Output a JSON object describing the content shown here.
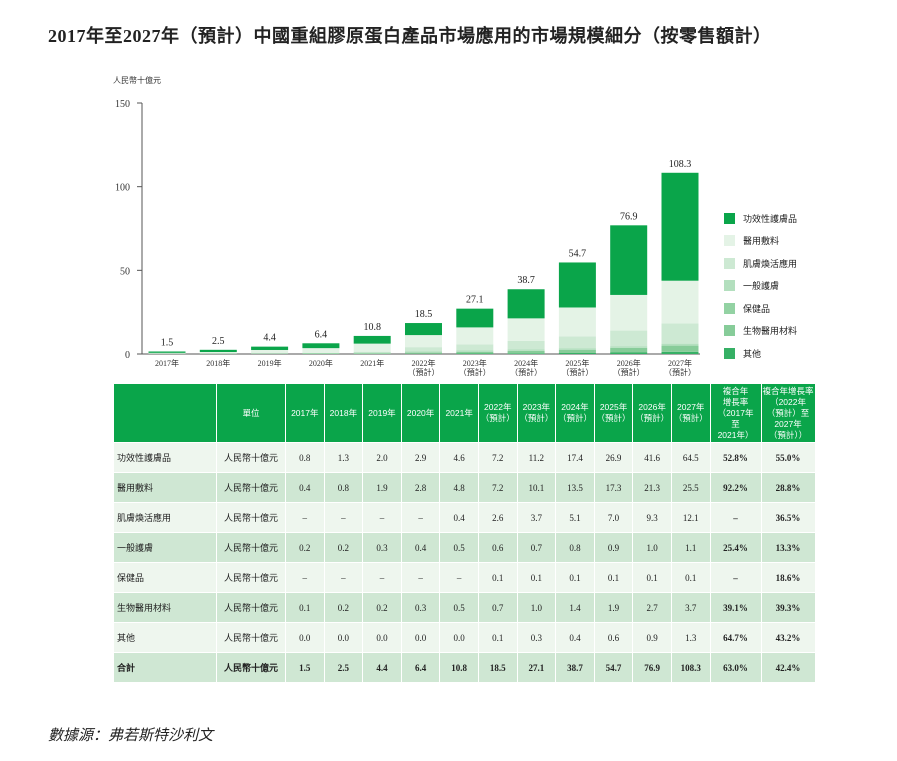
{
  "title": "2017年至2027年（預計）中國重組膠原蛋白產品市場應用的市場規模細分（按零售額計）",
  "source": "數據源：弗若斯特沙利文",
  "chart_data": {
    "type": "bar",
    "stacked": true,
    "ylabel": "人民幣十億元",
    "ylim": [
      0,
      150
    ],
    "yticks": [
      0,
      50,
      100,
      150
    ],
    "categories": [
      "2017年",
      "2018年",
      "2019年",
      "2020年",
      "2021年",
      "2022年\n（預計）",
      "2023年\n（預計）",
      "2024年\n（預計）",
      "2025年\n（預計）",
      "2026年\n（預計）",
      "2027年\n（預計）"
    ],
    "totals": [
      1.5,
      2.5,
      4.4,
      6.4,
      10.8,
      18.5,
      27.1,
      38.7,
      54.7,
      76.9,
      108.3
    ],
    "legend_position": "right",
    "series": [
      {
        "name": "功效性護膚品",
        "color": "#0aa54a",
        "values": [
          0.8,
          1.3,
          2.0,
          2.9,
          4.6,
          7.2,
          11.2,
          17.4,
          26.9,
          41.6,
          64.5
        ]
      },
      {
        "name": "醫用敷料",
        "color": "#e4f3e6",
        "values": [
          0.4,
          0.8,
          1.9,
          2.8,
          4.8,
          7.2,
          10.1,
          13.5,
          17.3,
          21.3,
          25.5
        ]
      },
      {
        "name": "肌膚煥活應用",
        "color": "#cde9d3",
        "values": [
          0,
          0,
          0,
          0,
          0.4,
          2.6,
          3.7,
          5.1,
          7.0,
          9.3,
          12.1
        ]
      },
      {
        "name": "一般護膚",
        "color": "#b3dfbe",
        "values": [
          0.2,
          0.2,
          0.3,
          0.4,
          0.5,
          0.6,
          0.7,
          0.8,
          0.9,
          1.0,
          1.1
        ]
      },
      {
        "name": "保健品",
        "color": "#93d2a3",
        "values": [
          0,
          0,
          0,
          0,
          0,
          0.1,
          0.1,
          0.1,
          0.1,
          0.1,
          0.1
        ]
      },
      {
        "name": "生物醫用材料",
        "color": "#87cc99",
        "values": [
          0.1,
          0.2,
          0.2,
          0.3,
          0.5,
          0.7,
          1.0,
          1.4,
          1.9,
          2.7,
          3.7
        ]
      },
      {
        "name": "其他",
        "color": "#36b065",
        "values": [
          0.0,
          0.0,
          0.0,
          0.0,
          0.0,
          0.1,
          0.3,
          0.4,
          0.6,
          0.9,
          1.3
        ]
      }
    ]
  },
  "table": {
    "headers": [
      "",
      "單位",
      "2017年",
      "2018年",
      "2019年",
      "2020年",
      "2021年",
      "2022年\n（預計）",
      "2023年\n（預計）",
      "2024年\n（預計）",
      "2025年\n（預計）",
      "2026年\n（預計）",
      "2027年\n（預計）",
      "複合年\n增長率\n（2017年\n至\n2021年）",
      "複合年增長率\n（2022年\n（預計）至\n2027年\n（預計））"
    ],
    "rows": [
      [
        "功效性護膚品",
        "人民幣十億元",
        "0.8",
        "1.3",
        "2.0",
        "2.9",
        "4.6",
        "7.2",
        "11.2",
        "17.4",
        "26.9",
        "41.6",
        "64.5",
        "52.8%",
        "55.0%"
      ],
      [
        "醫用敷料",
        "人民幣十億元",
        "0.4",
        "0.8",
        "1.9",
        "2.8",
        "4.8",
        "7.2",
        "10.1",
        "13.5",
        "17.3",
        "21.3",
        "25.5",
        "92.2%",
        "28.8%"
      ],
      [
        "肌膚煥活應用",
        "人民幣十億元",
        "–",
        "–",
        "–",
        "–",
        "0.4",
        "2.6",
        "3.7",
        "5.1",
        "7.0",
        "9.3",
        "12.1",
        "–",
        "36.5%"
      ],
      [
        "一般護膚",
        "人民幣十億元",
        "0.2",
        "0.2",
        "0.3",
        "0.4",
        "0.5",
        "0.6",
        "0.7",
        "0.8",
        "0.9",
        "1.0",
        "1.1",
        "25.4%",
        "13.3%"
      ],
      [
        "保健品",
        "人民幣十億元",
        "–",
        "–",
        "–",
        "–",
        "–",
        "0.1",
        "0.1",
        "0.1",
        "0.1",
        "0.1",
        "0.1",
        "–",
        "18.6%"
      ],
      [
        "生物醫用材料",
        "人民幣十億元",
        "0.1",
        "0.2",
        "0.2",
        "0.3",
        "0.5",
        "0.7",
        "1.0",
        "1.4",
        "1.9",
        "2.7",
        "3.7",
        "39.1%",
        "39.3%"
      ],
      [
        "其他",
        "人民幣十億元",
        "0.0",
        "0.0",
        "0.0",
        "0.0",
        "0.0",
        "0.1",
        "0.3",
        "0.4",
        "0.6",
        "0.9",
        "1.3",
        "64.7%",
        "43.2%"
      ],
      [
        "合計",
        "人民幣十億元",
        "1.5",
        "2.5",
        "4.4",
        "6.4",
        "10.8",
        "18.5",
        "27.1",
        "38.7",
        "54.7",
        "76.9",
        "108.3",
        "63.0%",
        "42.4%"
      ]
    ]
  }
}
